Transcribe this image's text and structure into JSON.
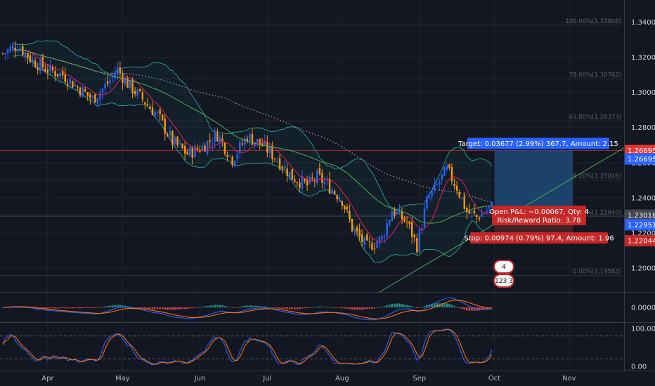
{
  "colors": {
    "background": "#131722",
    "grid": "#1f2332",
    "up": "#2962ff",
    "down": "#ff9800",
    "bb": "#26a69a",
    "sma_fast": "#e91e63",
    "sma_slow": "#4caf50",
    "sma_long": "#9e8aa8",
    "target_zone": "#1e4a78",
    "target_label": "#2962ff",
    "stop_label": "#c62828",
    "macd": "#2962ff",
    "macd_signal": "#ff6d00",
    "stoch_k": "#2962ff",
    "stoch_d": "#ff6d00",
    "trendline": "#4caf50",
    "resistance": "#e53935"
  },
  "price_axis": {
    "ticks": [
      "1.34000",
      "1.32000",
      "1.30000",
      "1.28000",
      "1.26000",
      "1.24000",
      "1.22000",
      "1.20000"
    ],
    "tick_values": [
      1.34,
      1.32,
      1.3,
      1.28,
      1.26,
      1.24,
      1.22,
      1.2
    ],
    "range": [
      1.1865,
      1.3525
    ],
    "badges": [
      {
        "text": "1.26695",
        "value": 1.26695,
        "color": "#e53935",
        "hline": true
      },
      {
        "text": "1.26695",
        "value": 1.2621,
        "color": "#2962ff",
        "hline": false
      },
      {
        "text": "1.23018",
        "value": 1.2302,
        "color": "#434651",
        "hline": true
      },
      {
        "text": "1.22951",
        "value": 1.2247,
        "color": "#2962ff",
        "hline": false
      },
      {
        "text": "1.22044",
        "value": 1.2156,
        "color": "#c62828",
        "hline": false
      }
    ]
  },
  "fib_levels": [
    {
      "label": "100.00%(1.33806)",
      "value": 1.33806
    },
    {
      "label": "78.60%(1.30762)",
      "value": 1.30762
    },
    {
      "label": "61.80%(1.28373)",
      "value": 1.28373
    },
    {
      "label": "38.20%(1.25016)",
      "value": 1.25016
    },
    {
      "label": "23.60%(1.22940)",
      "value": 1.2294
    },
    {
      "label": "0.00%(1.19583)",
      "value": 1.19583
    }
  ],
  "time_axis": {
    "labels": [
      "Apr",
      "May",
      "Jun",
      "Jul",
      "Aug",
      "Sep",
      "Oct",
      "Nov"
    ]
  },
  "chart_data": [
    {
      "type": "candlestick",
      "title": "",
      "x_labels": [
        "Apr",
        "May",
        "Jun",
        "Jul",
        "Aug",
        "Sep",
        "Oct",
        "Nov"
      ],
      "ylim": [
        1.1865,
        1.3525
      ],
      "close_path": [
        [
          0,
          1.322
        ],
        [
          6,
          1.327
        ],
        [
          12,
          1.318
        ],
        [
          18,
          1.313
        ],
        [
          24,
          1.31
        ],
        [
          30,
          1.303
        ],
        [
          36,
          1.296
        ],
        [
          42,
          1.305
        ],
        [
          46,
          1.313
        ],
        [
          50,
          1.305
        ],
        [
          56,
          1.296
        ],
        [
          62,
          1.287
        ],
        [
          68,
          1.272
        ],
        [
          74,
          1.265
        ],
        [
          80,
          1.269
        ],
        [
          86,
          1.276
        ],
        [
          92,
          1.262
        ],
        [
          98,
          1.275
        ],
        [
          104,
          1.27
        ],
        [
          110,
          1.262
        ],
        [
          116,
          1.252
        ],
        [
          122,
          1.247
        ],
        [
          126,
          1.252
        ],
        [
          132,
          1.245
        ],
        [
          136,
          1.239
        ],
        [
          140,
          1.223
        ],
        [
          146,
          1.212
        ],
        [
          152,
          1.217
        ],
        [
          156,
          1.233
        ],
        [
          162,
          1.226
        ],
        [
          166,
          1.213
        ],
        [
          170,
          1.238
        ],
        [
          174,
          1.247
        ],
        [
          178,
          1.256
        ],
        [
          182,
          1.246
        ],
        [
          186,
          1.232
        ],
        [
          190,
          1.229
        ],
        [
          196,
          1.235
        ]
      ],
      "indicators": [
        "Bollinger Bands (20, 2)",
        "SMA fast",
        "SMA slow",
        "SMA long (dotted)",
        "Fibonacci retracement",
        "Trendline",
        "Long position (target / stop)"
      ],
      "position": {
        "entry": 1.23018,
        "target": 1.26695,
        "stop": 1.22044,
        "target_label": "Target: 0.03677 (2.99%) 367.7, Amount: 2.15",
        "pnl_label": "Open P&L: −0.00067, Qty: 4",
        "rr_label": "Risk/Reward Ratio: 3.78",
        "stop_label": "Stop: 0.00974 (0.79%) 97.4, Amount: 1.96"
      },
      "event_badges": [
        "4",
        "123 3"
      ]
    },
    {
      "type": "bar",
      "title": "",
      "indicator": "MACD",
      "ylim": [
        -0.012,
        0.012
      ],
      "tick_label": "0.00000",
      "tick_value": 0
    },
    {
      "type": "line",
      "title": "",
      "indicator": "Stochastic",
      "ylim": [
        0,
        100
      ],
      "ticks": [
        "100.00",
        "0.00"
      ],
      "tick_values": [
        100,
        0
      ],
      "bands": [
        80,
        20
      ]
    }
  ]
}
